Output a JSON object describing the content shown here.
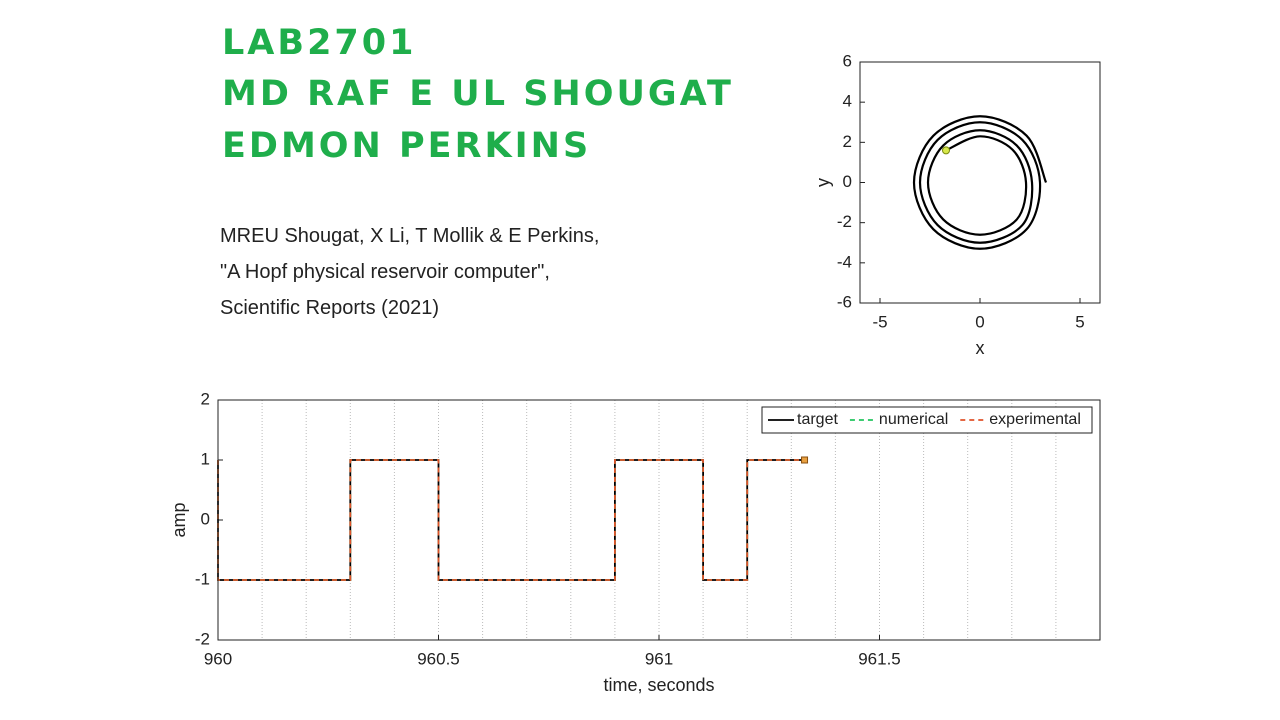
{
  "header": {
    "lines": [
      "LAB2701",
      "MD RAF E UL SHOUGAT",
      "EDMON PERKINS"
    ]
  },
  "citation": {
    "lines": [
      "MREU Shougat, X Li, T Mollik & E Perkins,",
      "\"A Hopf physical reservoir computer\",",
      "Scientific Reports (2021)"
    ]
  },
  "chart_data": [
    {
      "type": "line",
      "xlabel": "x",
      "ylabel": "y",
      "xlim": [
        -6,
        6
      ],
      "ylim": [
        -6,
        6
      ],
      "xticks": [
        -5,
        0,
        5
      ],
      "yticks": [
        -6,
        -4,
        -2,
        0,
        2,
        4,
        6
      ],
      "x": [
        3.3,
        2.33,
        0,
        -2.33,
        -3.3,
        -2.33,
        0,
        2.33,
        3.0,
        2.12,
        0,
        -2.12,
        -3.0,
        -2.12,
        0,
        2.12,
        2.6,
        1.84,
        0,
        -1.84,
        -2.6,
        -1.84,
        0,
        1.84,
        2.3,
        1.63,
        0,
        -1.7
      ],
      "series": [
        {
          "color": "#000000",
          "values": [
            0,
            2.33,
            3.3,
            2.33,
            0,
            -2.33,
            -3.3,
            -2.33,
            0,
            2.12,
            3.0,
            2.12,
            0,
            -2.12,
            -3.0,
            -2.12,
            0,
            1.84,
            2.6,
            1.84,
            0,
            -1.84,
            -2.6,
            -1.84,
            0,
            1.63,
            2.3,
            1.6
          ]
        }
      ]
    },
    {
      "type": "line",
      "xlabel": "time, seconds",
      "ylabel": "amp",
      "xlim": [
        960,
        962
      ],
      "ylim": [
        -2,
        2
      ],
      "xticks": [
        960,
        960.5,
        961,
        961.5
      ],
      "yticks": [
        -2,
        -1,
        0,
        1,
        2
      ],
      "x_grid": [
        960.1,
        960.2,
        960.3,
        960.4,
        960.5,
        960.6,
        960.7,
        960.8,
        960.9,
        961,
        961.1,
        961.2,
        961.3,
        961.4,
        961.5,
        961.6,
        961.7,
        961.8,
        961.9
      ],
      "legend": "northeast",
      "x": [
        960,
        960,
        960.3,
        960.3,
        960.5,
        960.5,
        960.9,
        960.9,
        961.1,
        961.1,
        961.2,
        961.2,
        961.33
      ],
      "series": [
        {
          "name": "target",
          "color": "#000000",
          "style": "solid",
          "values": [
            1,
            -1,
            -1,
            1,
            1,
            -1,
            -1,
            1,
            1,
            -1,
            -1,
            1,
            1
          ]
        },
        {
          "name": "numerical",
          "color": "#22c55e",
          "style": "dashed",
          "values": [
            1,
            -1,
            -1,
            1,
            1,
            -1,
            -1,
            1,
            1,
            -1,
            -1,
            1,
            1
          ]
        },
        {
          "name": "experimental",
          "color": "#e0522a",
          "style": "dashed",
          "values": [
            1,
            -1,
            -1,
            1,
            1,
            -1,
            -1,
            1,
            1,
            -1,
            -1,
            1,
            1
          ]
        }
      ]
    }
  ]
}
